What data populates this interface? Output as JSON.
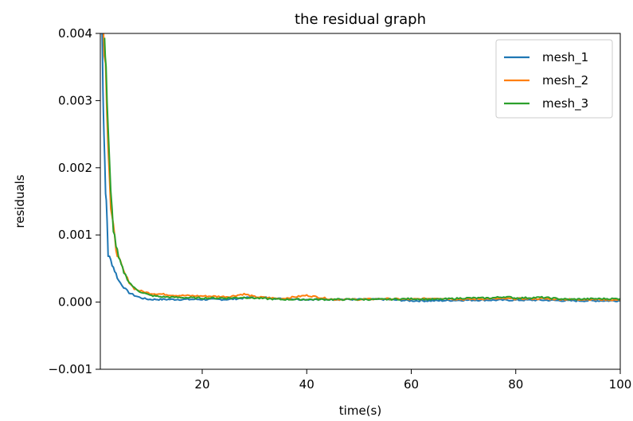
{
  "chart_data": {
    "type": "line",
    "title": "the residual graph",
    "xlabel": "time(s)",
    "ylabel": "residuals",
    "xlim": [
      0.5,
      100
    ],
    "ylim": [
      -0.001,
      0.004
    ],
    "xticks": [
      20,
      40,
      60,
      80,
      100
    ],
    "xtick_labels": [
      "20",
      "40",
      "60",
      "80",
      "100"
    ],
    "yticks": [
      -0.001,
      0.0,
      0.001,
      0.002,
      0.003,
      0.004
    ],
    "ytick_labels": [
      "−0.001",
      "0.000",
      "0.001",
      "0.002",
      "0.003",
      "0.004"
    ],
    "grid": false,
    "legend_position": "top-right",
    "series": [
      {
        "name": "mesh_1",
        "color": "#1f77b4",
        "x": [
          0.8,
          1.0,
          1.2,
          1.5,
          1.8,
          2.0,
          2.5,
          3,
          3.5,
          4,
          5,
          6,
          7,
          8,
          9,
          10,
          12,
          15,
          20,
          25,
          28,
          30,
          35,
          40,
          45,
          50,
          55,
          60,
          65,
          70,
          75,
          80,
          85,
          90,
          95,
          100
        ],
        "y": [
          0.0042,
          0.0033,
          0.0025,
          0.0017,
          0.0012,
          0.0007,
          0.00062,
          0.00052,
          0.00042,
          0.00032,
          0.00022,
          0.00014,
          0.0001,
          7e-05,
          5e-05,
          4e-05,
          4e-05,
          4e-05,
          4e-05,
          4e-05,
          6e-05,
          8e-05,
          5e-05,
          4e-05,
          4e-05,
          4e-05,
          4e-05,
          2e-05,
          2e-05,
          3e-05,
          3e-05,
          3e-05,
          3e-05,
          2e-05,
          2e-05,
          2e-05
        ]
      },
      {
        "name": "mesh_2",
        "color": "#ff7f0e",
        "x": [
          1.0,
          1.5,
          2.0,
          2.5,
          3,
          3.5,
          4,
          5,
          6,
          7,
          8,
          9,
          10,
          12,
          15,
          20,
          25,
          28,
          30,
          35,
          40,
          45,
          50,
          55,
          60,
          65,
          70,
          75,
          80,
          85,
          90,
          95,
          100
        ],
        "y": [
          0.0043,
          0.0035,
          0.0024,
          0.0014,
          0.0011,
          0.0008,
          0.00065,
          0.00045,
          0.0003,
          0.0002,
          0.00017,
          0.00015,
          0.00013,
          0.00012,
          0.0001,
          9e-05,
          8e-05,
          0.00012,
          8e-05,
          5e-05,
          0.0001,
          4e-05,
          4e-05,
          5e-05,
          4e-05,
          6e-05,
          4e-05,
          5e-05,
          5e-05,
          5e-05,
          4e-05,
          4e-05,
          3e-05
        ]
      },
      {
        "name": "mesh_3",
        "color": "#2ca02c",
        "x": [
          1.3,
          1.6,
          2.0,
          2.5,
          3,
          3.5,
          4,
          4.5,
          5,
          6,
          7,
          8,
          9,
          10,
          12,
          15,
          20,
          25,
          28,
          30,
          35,
          40,
          45,
          50,
          55,
          60,
          65,
          70,
          75,
          78,
          80,
          85,
          90,
          95,
          100
        ],
        "y": [
          0.0041,
          0.0035,
          0.0025,
          0.0016,
          0.0011,
          0.00085,
          0.00065,
          0.00055,
          0.00045,
          0.0003,
          0.00021,
          0.00016,
          0.00013,
          0.0001,
          8e-05,
          7e-05,
          6e-05,
          6e-05,
          7e-05,
          6e-05,
          4e-05,
          4e-05,
          4e-05,
          4e-05,
          4e-05,
          5e-05,
          4e-05,
          6e-05,
          6e-05,
          8e-05,
          6e-05,
          7e-05,
          4e-05,
          5e-05,
          5e-05
        ]
      }
    ]
  }
}
